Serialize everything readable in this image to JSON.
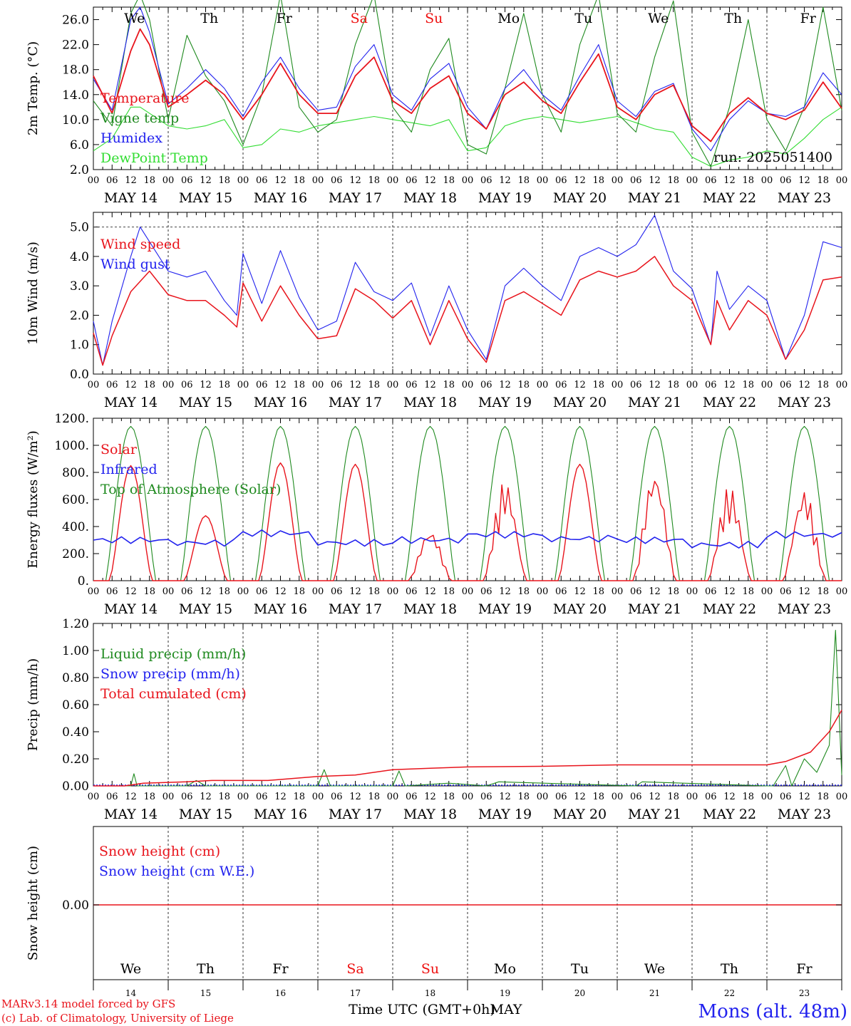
{
  "days": [
    "We",
    "Th",
    "Fr",
    "Sa",
    "Su",
    "Mo",
    "Tu",
    "We",
    "Th",
    "Fr"
  ],
  "weekend_days": [
    3,
    4
  ],
  "date_labels": [
    "MAY 14",
    "MAY 15",
    "MAY 16",
    "MAY 17",
    "MAY 18",
    "MAY 19",
    "MAY 20",
    "MAY 21",
    "MAY 22",
    "MAY 23"
  ],
  "hour_labels": [
    "00",
    "06",
    "12",
    "18"
  ],
  "day_numbers": [
    "14",
    "15",
    "16",
    "17",
    "18",
    "19",
    "20",
    "21",
    "22",
    "23"
  ],
  "colors": {
    "red": "#e8141c",
    "green": "#1f8a1f",
    "blue": "#2222ee",
    "lightgreen": "#33dd33",
    "weekend": "#ee1111"
  },
  "run_label": "run: 2025051400",
  "footer": {
    "credit1": "MARv3.14 model forced by GFS",
    "credit2": "(c) Lab. of Climatology, University of Liege",
    "xlabel": "Time UTC (GMT+0h)",
    "month": "MAY",
    "station": "Mons (alt. 48m)"
  },
  "chart_data": [
    {
      "type": "line",
      "ylabel": "2m Temp. (°C)",
      "ylim": [
        2,
        28
      ],
      "yticks": [
        "2.0",
        "6.0",
        "10.0",
        "14.0",
        "18.0",
        "22.0",
        "26.0"
      ],
      "legend": [
        "Temperature",
        "Vigne temp",
        "Humidex",
        "DewPoint Temp"
      ],
      "x_unit": "hours since MAY 14 00 UTC",
      "series": [
        {
          "name": "Temperature",
          "color": "red",
          "x": [
            0,
            6,
            12,
            15,
            18,
            24,
            30,
            36,
            42,
            48,
            54,
            60,
            66,
            72,
            78,
            84,
            90,
            96,
            102,
            108,
            114,
            120,
            126,
            132,
            138,
            144,
            150,
            156,
            162,
            168,
            174,
            180,
            186,
            192,
            198,
            204,
            210,
            216,
            222,
            228,
            234,
            240
          ],
          "values": [
            17,
            11,
            21,
            24.5,
            22,
            12,
            14,
            16.3,
            14,
            10,
            14,
            19,
            14,
            11,
            11,
            17,
            20,
            13,
            11,
            15,
            17,
            11,
            8.5,
            14,
            16,
            13,
            11,
            16,
            20.5,
            12,
            10,
            14,
            15.5,
            9,
            6.5,
            11,
            13.5,
            11,
            10,
            11.5,
            16,
            11.8
          ]
        },
        {
          "name": "Humidex",
          "color": "blue",
          "x": [
            0,
            6,
            12,
            15,
            18,
            24,
            30,
            36,
            42,
            48,
            54,
            60,
            66,
            72,
            78,
            84,
            90,
            96,
            102,
            108,
            114,
            120,
            126,
            132,
            138,
            144,
            150,
            156,
            162,
            168,
            174,
            180,
            186,
            192,
            198,
            204,
            210,
            216,
            222,
            228,
            234,
            240
          ],
          "values": [
            16.5,
            11.5,
            26,
            28,
            24,
            12.5,
            15,
            18,
            15,
            10.5,
            16,
            20,
            15,
            11.5,
            12,
            18.5,
            22,
            14,
            11.5,
            16.5,
            19,
            12,
            8.5,
            15,
            18,
            14,
            11.5,
            17,
            22,
            13,
            10.5,
            14.5,
            15.8,
            8.5,
            5,
            10,
            13,
            11,
            10.5,
            12,
            17.5,
            14
          ]
        },
        {
          "name": "Vigne temp",
          "color": "green",
          "x": [
            0,
            6,
            12,
            15,
            18,
            24,
            30,
            36,
            42,
            48,
            54,
            60,
            66,
            72,
            78,
            84,
            90,
            96,
            102,
            108,
            114,
            120,
            126,
            132,
            138,
            144,
            150,
            156,
            162,
            168,
            174,
            180,
            186,
            192,
            198,
            204,
            210,
            216,
            222,
            228,
            234,
            240
          ],
          "values": [
            13,
            9,
            27,
            30,
            26,
            10,
            23.5,
            17,
            13,
            6,
            14,
            30,
            12,
            8,
            10,
            22,
            30,
            12,
            8,
            18,
            23,
            6,
            4.5,
            15,
            27,
            14,
            8,
            22,
            30,
            11,
            8,
            20,
            29,
            8,
            2.5,
            12,
            26,
            10,
            5,
            12,
            28,
            11.5
          ]
        },
        {
          "name": "DewPoint Temp",
          "color": "lightgreen",
          "x": [
            0,
            6,
            12,
            15,
            18,
            24,
            30,
            36,
            42,
            48,
            54,
            60,
            66,
            72,
            78,
            84,
            90,
            96,
            102,
            108,
            114,
            120,
            126,
            132,
            138,
            144,
            150,
            156,
            162,
            168,
            174,
            180,
            186,
            192,
            198,
            204,
            210,
            216,
            222,
            228,
            234,
            240
          ],
          "values": [
            5,
            7,
            12,
            12,
            11,
            9,
            8.5,
            9,
            10,
            5.5,
            6,
            8.5,
            8,
            9,
            9.5,
            10,
            10.5,
            10,
            9.5,
            9,
            10,
            5,
            5.5,
            9,
            10,
            10.5,
            10,
            9.5,
            10,
            10.5,
            9.5,
            8.5,
            8,
            4,
            2.5,
            3.5,
            4,
            5,
            4.5,
            7,
            10,
            12
          ]
        }
      ]
    },
    {
      "type": "line",
      "ylabel": "10m Wind (m/s)",
      "ylim": [
        0,
        5.5
      ],
      "yticks": [
        "0.0",
        "1.0",
        "2.0",
        "3.0",
        "4.0",
        "5.0"
      ],
      "legend": [
        "Wind speed",
        "Wind gust"
      ],
      "x_unit": "hours since MAY 14 00 UTC",
      "series": [
        {
          "name": "Wind speed",
          "color": "red",
          "x": [
            0,
            3,
            6,
            12,
            18,
            24,
            30,
            36,
            42,
            46,
            48,
            54,
            60,
            66,
            72,
            78,
            84,
            90,
            96,
            102,
            108,
            114,
            120,
            126,
            132,
            138,
            144,
            150,
            156,
            162,
            168,
            174,
            180,
            186,
            192,
            198,
            200,
            204,
            210,
            216,
            222,
            228,
            234,
            240
          ],
          "values": [
            1.4,
            0.3,
            1.3,
            2.8,
            3.5,
            2.7,
            2.5,
            2.5,
            2.0,
            1.6,
            3.1,
            1.8,
            3.0,
            2.0,
            1.2,
            1.3,
            2.9,
            2.5,
            1.9,
            2.5,
            1.0,
            2.5,
            1.2,
            0.4,
            2.5,
            2.8,
            2.4,
            2.0,
            3.2,
            3.5,
            3.3,
            3.5,
            4.0,
            3.0,
            2.5,
            1.0,
            2.5,
            1.5,
            2.5,
            2.0,
            0.5,
            1.5,
            3.2,
            3.3
          ]
        },
        {
          "name": "Wind gust",
          "color": "blue",
          "x": [
            0,
            3,
            6,
            12,
            15,
            18,
            24,
            30,
            36,
            42,
            46,
            48,
            54,
            60,
            66,
            72,
            78,
            84,
            90,
            96,
            102,
            108,
            114,
            120,
            126,
            132,
            138,
            144,
            150,
            156,
            162,
            168,
            174,
            180,
            186,
            192,
            198,
            200,
            204,
            210,
            216,
            222,
            228,
            234,
            240
          ],
          "values": [
            1.8,
            0.3,
            1.8,
            4.0,
            5.0,
            4.5,
            3.5,
            3.3,
            3.5,
            2.5,
            2.0,
            4.1,
            2.4,
            4.2,
            2.6,
            1.5,
            1.8,
            3.8,
            2.8,
            2.5,
            3.1,
            1.3,
            3.0,
            1.5,
            0.5,
            3.0,
            3.6,
            3.0,
            2.5,
            4.0,
            4.3,
            4.0,
            4.4,
            5.4,
            3.5,
            2.9,
            1.0,
            3.5,
            2.2,
            3.0,
            2.5,
            0.5,
            2.0,
            4.5,
            4.3
          ]
        }
      ]
    },
    {
      "type": "line",
      "ylabel": "Energy fluxes (W/m²)",
      "ylim": [
        0,
        1200
      ],
      "yticks": [
        "0.",
        "200.",
        "400.",
        "600.",
        "800.",
        "1000.",
        "1200."
      ],
      "legend": [
        "Solar",
        "Infrared",
        "Top of Atmosphere (Solar)"
      ],
      "x_unit": "hours since MAY 14 00 UTC",
      "toa_peak": 1140,
      "solar_peaks": [
        850,
        480,
        870,
        860,
        380,
        740,
        860,
        820,
        700,
        680
      ],
      "infrared_levels": [
        300,
        280,
        350,
        280,
        300,
        340,
        310,
        300,
        265,
        340
      ]
    },
    {
      "type": "line",
      "ylabel": "Precip (mm/h)",
      "ylim": [
        0,
        1.2
      ],
      "yticks": [
        "0.00",
        "0.20",
        "0.40",
        "0.60",
        "0.80",
        "1.00",
        "1.20"
      ],
      "legend": [
        "Liquid precip (mm/h)",
        "Snow precip (mm/h)",
        "Total cumulated (cm)"
      ],
      "x_unit": "hours since MAY 14 00 UTC",
      "series": [
        {
          "name": "Total cumulated (cm)",
          "color": "red",
          "x": [
            0,
            10,
            16,
            30,
            38,
            56,
            72,
            84,
            96,
            108,
            120,
            144,
            168,
            216,
            222,
            230,
            236,
            240
          ],
          "values": [
            0,
            0,
            0.02,
            0.03,
            0.04,
            0.04,
            0.07,
            0.08,
            0.12,
            0.13,
            0.14,
            0.145,
            0.155,
            0.155,
            0.18,
            0.25,
            0.4,
            0.56
          ]
        },
        {
          "name": "Liquid precip (mm/h)",
          "color": "green",
          "x": [
            0,
            12,
            13,
            14,
            30,
            33,
            36,
            72,
            74,
            76,
            96,
            98,
            100,
            114,
            126,
            130,
            174,
            176,
            216,
            218,
            222,
            224,
            228,
            232,
            236,
            238,
            240
          ],
          "values": [
            0,
            0,
            0.09,
            0,
            0,
            0.04,
            0,
            0,
            0.12,
            0,
            0,
            0.11,
            0,
            0.02,
            0,
            0.03,
            0,
            0.03,
            0,
            0,
            0.15,
            0,
            0.2,
            0.1,
            0.3,
            1.15,
            0.08
          ]
        }
      ]
    },
    {
      "type": "line",
      "ylabel": "Snow height (cm)",
      "yticks": [
        "0.00"
      ],
      "legend": [
        "Snow height (cm)",
        "Snow height (cm W.E.)"
      ],
      "series": [
        {
          "name": "Snow height (cm)",
          "color": "red",
          "values": [
            0,
            0
          ]
        }
      ]
    }
  ]
}
